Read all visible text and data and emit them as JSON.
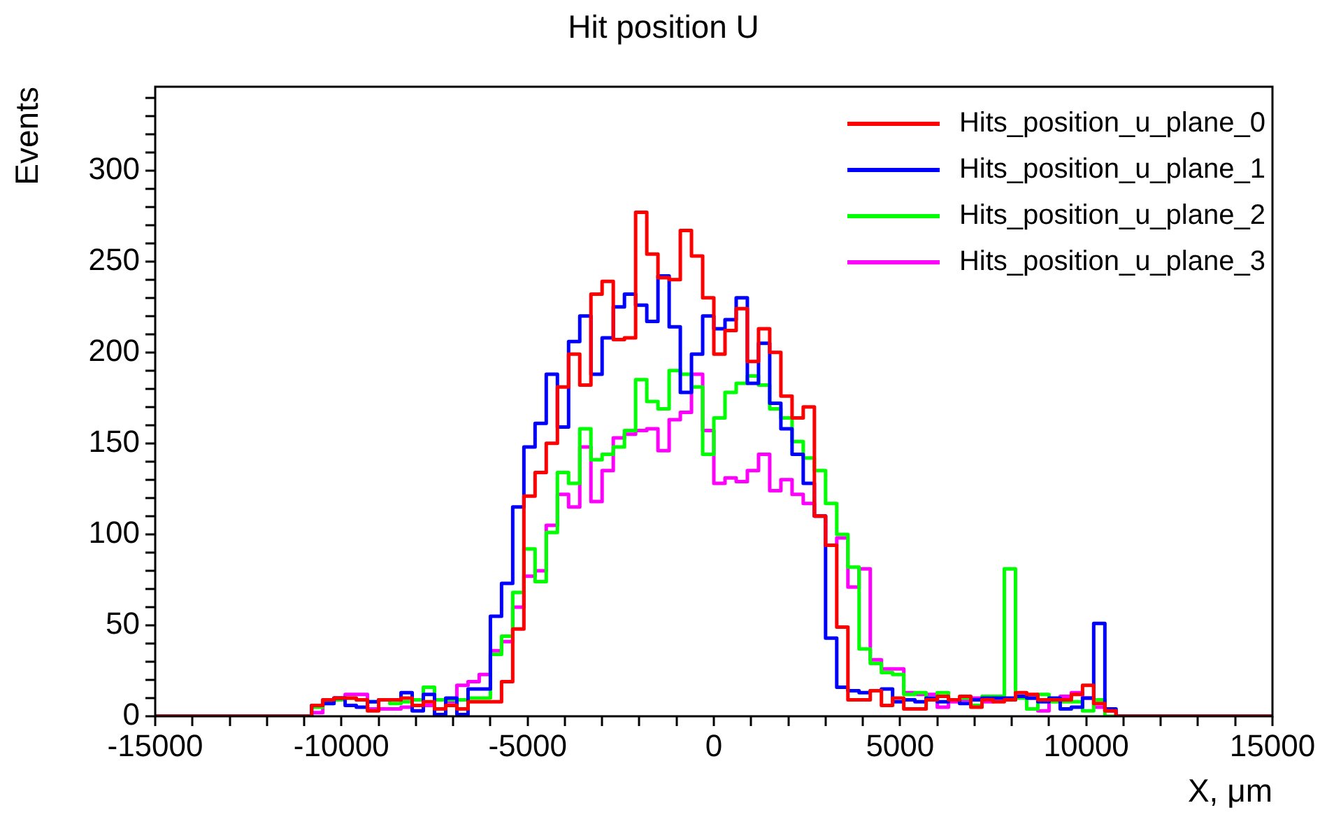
{
  "chart_data": {
    "type": "histogram",
    "title": "Hit position U",
    "xlabel": "X, μm",
    "ylabel": "Events",
    "bins": [
      -15000,
      -14700,
      -14400,
      -14100,
      -13800,
      -13500,
      -13200,
      -12900,
      -12600,
      -12300,
      -12000,
      -11700,
      -11400,
      -11100,
      -10800,
      -10500,
      -10200,
      -9900,
      -9600,
      -9300,
      -9000,
      -8700,
      -8400,
      -8100,
      -7800,
      -7500,
      -7200,
      -6900,
      -6600,
      -6300,
      -6000,
      -5700,
      -5400,
      -5100,
      -4800,
      -4500,
      -4200,
      -3900,
      -3600,
      -3300,
      -3000,
      -2700,
      -2400,
      -2100,
      -1800,
      -1500,
      -1200,
      -900,
      -600,
      -300,
      0,
      300,
      600,
      900,
      1200,
      1500,
      1800,
      2100,
      2400,
      2700,
      3000,
      3300,
      3600,
      3900,
      4200,
      4500,
      4800,
      5100,
      5400,
      5700,
      6000,
      6300,
      6600,
      6900,
      7200,
      7500,
      7800,
      8100,
      8400,
      8700,
      9000,
      9300,
      9600,
      9900,
      10200,
      10500,
      10800,
      11100,
      11400,
      11700,
      12000,
      12300,
      12600,
      12900,
      13200,
      13500,
      13800,
      14100,
      14400,
      14700,
      15000
    ],
    "series": [
      {
        "name": "Hits_position_u_plane_0",
        "color": "#ff0000",
        "values": [
          0,
          0,
          0,
          0,
          0,
          0,
          0,
          0,
          0,
          0,
          0,
          0,
          0,
          0,
          6,
          9,
          10,
          10,
          9,
          3,
          9,
          9,
          10,
          6,
          8,
          4,
          6,
          4,
          8,
          8,
          8,
          19,
          48,
          121,
          134,
          150,
          181,
          199,
          182,
          232,
          239,
          207,
          208,
          277,
          254,
          241,
          240,
          267,
          253,
          230,
          199,
          212,
          224,
          195,
          213,
          200,
          176,
          164,
          170,
          110,
          94,
          49,
          9,
          9,
          14,
          6,
          10,
          4,
          4,
          9,
          11,
          9,
          11,
          5,
          9,
          8,
          9,
          13,
          12,
          9,
          9,
          9,
          12,
          17,
          7,
          3,
          0,
          0,
          0,
          0,
          0,
          0,
          0,
          0,
          0,
          0,
          0,
          0,
          0,
          0
        ]
      },
      {
        "name": "Hits_position_u_plane_1",
        "color": "#0000ff",
        "values": [
          0,
          0,
          0,
          0,
          0,
          0,
          0,
          0,
          0,
          0,
          0,
          0,
          0,
          0,
          6,
          7,
          10,
          6,
          5,
          8,
          9,
          9,
          13,
          3,
          12,
          1,
          10,
          1,
          15,
          15,
          55,
          73,
          115,
          148,
          161,
          188,
          159,
          206,
          220,
          188,
          208,
          225,
          232,
          226,
          217,
          242,
          214,
          178,
          199,
          220,
          213,
          218,
          230,
          183,
          205,
          172,
          158,
          144,
          128,
          110,
          43,
          16,
          14,
          13,
          14,
          15,
          8,
          9,
          8,
          10,
          8,
          9,
          7,
          9,
          10,
          10,
          10,
          11,
          10,
          8,
          10,
          4,
          5,
          10,
          51,
          4,
          0,
          0,
          0,
          0,
          0,
          0,
          0,
          0,
          0,
          0,
          0,
          0,
          0,
          0
        ]
      },
      {
        "name": "Hits_position_u_plane_2",
        "color": "#00ff00",
        "values": [
          0,
          0,
          0,
          0,
          0,
          0,
          0,
          0,
          0,
          0,
          0,
          0,
          0,
          0,
          5,
          7,
          9,
          10,
          9,
          8,
          9,
          7,
          8,
          9,
          16,
          9,
          9,
          9,
          10,
          10,
          34,
          44,
          68,
          92,
          74,
          101,
          134,
          128,
          158,
          141,
          144,
          148,
          157,
          185,
          173,
          169,
          190,
          188,
          181,
          144,
          164,
          178,
          183,
          187,
          182,
          169,
          164,
          151,
          142,
          135,
          117,
          100,
          82,
          37,
          29,
          24,
          23,
          12,
          13,
          9,
          13,
          9,
          10,
          6,
          11,
          11,
          81,
          10,
          4,
          12,
          8,
          8,
          8,
          3,
          9,
          0,
          0,
          0,
          0,
          0,
          0,
          0,
          0,
          0,
          0,
          0,
          0,
          0,
          0,
          0
        ]
      },
      {
        "name": "Hits_position_u_plane_3",
        "color": "#ff00ff",
        "values": [
          0,
          0,
          0,
          0,
          0,
          0,
          0,
          0,
          0,
          0,
          0,
          0,
          0,
          0,
          2,
          9,
          10,
          12,
          12,
          4,
          4,
          4,
          5,
          6,
          6,
          9,
          8,
          17,
          19,
          23,
          36,
          41,
          60,
          77,
          80,
          105,
          122,
          115,
          148,
          118,
          135,
          153,
          155,
          157,
          158,
          146,
          163,
          167,
          188,
          157,
          128,
          131,
          129,
          135,
          144,
          124,
          130,
          122,
          117,
          110,
          94,
          98,
          71,
          81,
          31,
          26,
          26,
          13,
          12,
          12,
          5,
          8,
          9,
          10,
          8,
          10,
          9,
          11,
          10,
          3,
          9,
          11,
          13,
          10,
          5,
          3,
          0,
          0,
          0,
          0,
          0,
          0,
          0,
          0,
          0,
          0,
          0,
          0,
          0,
          0
        ]
      }
    ],
    "xlim": [
      -15000,
      15000
    ],
    "xticks": [
      -15000,
      {
        "value": -14000,
        "label": null
      },
      {
        "value": -13000,
        "label": null
      },
      {
        "value": -12000,
        "label": null
      },
      {
        "value": -11000,
        "label": null
      },
      -10000,
      {
        "value": -9000,
        "label": null
      },
      {
        "value": -8000,
        "label": null
      },
      {
        "value": -7000,
        "label": null
      },
      {
        "value": -6000,
        "label": null
      },
      -5000,
      {
        "value": -4000,
        "label": null
      },
      {
        "value": -3000,
        "label": null
      },
      {
        "value": -2000,
        "label": null
      },
      {
        "value": -1000,
        "label": null
      },
      0,
      {
        "value": 1000,
        "label": null
      },
      {
        "value": 2000,
        "label": null
      },
      {
        "value": 3000,
        "label": null
      },
      {
        "value": 4000,
        "label": null
      },
      5000,
      {
        "value": 6000,
        "label": null
      },
      {
        "value": 7000,
        "label": null
      },
      {
        "value": 8000,
        "label": null
      },
      {
        "value": 9000,
        "label": null
      },
      10000,
      {
        "value": 11000,
        "label": null
      },
      {
        "value": 12000,
        "label": null
      },
      {
        "value": 13000,
        "label": null
      },
      {
        "value": 14000,
        "label": null
      },
      15000
    ],
    "ylim": [
      0,
      346
    ],
    "yticks": [
      0,
      {
        "value": 10,
        "label": null
      },
      {
        "value": 20,
        "label": null
      },
      {
        "value": 30,
        "label": null
      },
      {
        "value": 40,
        "label": null
      },
      50,
      {
        "value": 60,
        "label": null
      },
      {
        "value": 70,
        "label": null
      },
      {
        "value": 80,
        "label": null
      },
      {
        "value": 90,
        "label": null
      },
      100,
      {
        "value": 110,
        "label": null
      },
      {
        "value": 120,
        "label": null
      },
      {
        "value": 130,
        "label": null
      },
      {
        "value": 140,
        "label": null
      },
      150,
      {
        "value": 160,
        "label": null
      },
      {
        "value": 170,
        "label": null
      },
      {
        "value": 180,
        "label": null
      },
      {
        "value": 190,
        "label": null
      },
      200,
      {
        "value": 210,
        "label": null
      },
      {
        "value": 220,
        "label": null
      },
      {
        "value": 230,
        "label": null
      },
      {
        "value": 240,
        "label": null
      },
      250,
      {
        "value": 260,
        "label": null
      },
      {
        "value": 270,
        "label": null
      },
      {
        "value": 280,
        "label": null
      },
      {
        "value": 290,
        "label": null
      },
      300,
      {
        "value": 310,
        "label": null
      },
      {
        "value": 320,
        "label": null
      },
      {
        "value": 330,
        "label": null
      },
      {
        "value": 340,
        "label": null
      }
    ],
    "legend": "top right"
  }
}
